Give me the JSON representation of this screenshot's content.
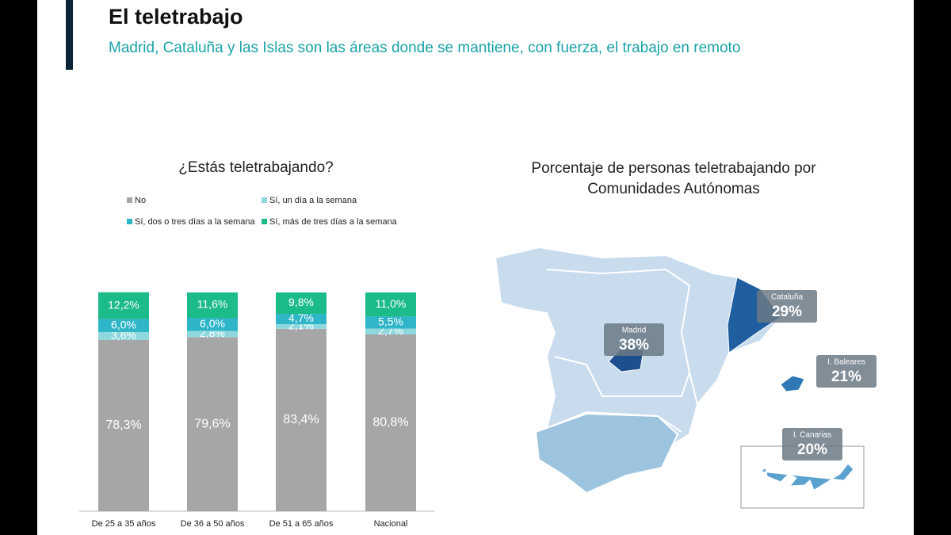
{
  "header": {
    "title": "El teletrabajo",
    "subtitle": "Madrid, Cataluña y las Islas son las áreas donde se mantiene, con fuerza, el trabajo en remoto"
  },
  "chart_data": [
    {
      "type": "stacked-bar",
      "title": "¿Estás teletrabajando?",
      "categories": [
        "De 25 a 35 años",
        "De 36 a 50 años",
        "De 51 a 65 años",
        "Nacional"
      ],
      "ylim": [
        0,
        100
      ],
      "series": [
        {
          "name": "No",
          "color": "#a6a6a6",
          "values": [
            78.3,
            79.6,
            83.4,
            80.8
          ],
          "value_labels": [
            "78,3%",
            "79,6%",
            "83,4%",
            "80,8%"
          ]
        },
        {
          "name": "Sí, un día a la semana",
          "color": "#8ed8dd",
          "values": [
            3.6,
            2.8,
            2.1,
            2.7
          ],
          "value_labels": [
            "3,6%",
            "2,8%",
            "2,1%",
            "2,7%"
          ]
        },
        {
          "name": "Sí, dos o tres días a la semana",
          "color": "#2eb5c7",
          "values": [
            6.0,
            6.0,
            4.7,
            5.5
          ],
          "value_labels": [
            "6,0%",
            "6,0%",
            "4,7%",
            "5,5%"
          ]
        },
        {
          "name": "Sí, más de tres días a la semana",
          "color": "#1cbb8a",
          "values": [
            12.2,
            11.6,
            9.8,
            11.0
          ],
          "value_labels": [
            "12,2%",
            "11,6%",
            "9,8%",
            "11,0%"
          ]
        }
      ]
    },
    {
      "type": "map",
      "title": "Porcentaje de personas teletrabajando por Comunidades Autónomas",
      "categories": [
        "Madrid",
        "Cataluña",
        "I. Baleares",
        "I. Canarias"
      ],
      "values": [
        38,
        29,
        21,
        20
      ],
      "value_labels": [
        "38%",
        "29%",
        "21%",
        "20%"
      ],
      "colors": [
        "#1d4f8f",
        "#1f5e9f",
        "#2f77b5",
        "#5ba1cf"
      ]
    }
  ]
}
